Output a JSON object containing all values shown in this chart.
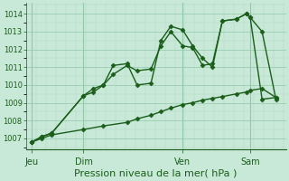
{
  "background_color": "#c8e8d8",
  "grid_major_color": "#90c8a8",
  "grid_minor_color": "#b0d8c0",
  "line_color": "#1a5e1a",
  "marker": "D",
  "marker_size": 2.5,
  "linewidth": 1.0,
  "ylabel_ticks": [
    1007,
    1008,
    1009,
    1010,
    1011,
    1012,
    1013,
    1014
  ],
  "ylim": [
    1006.4,
    1014.6
  ],
  "xlim": [
    -0.1,
    13.0
  ],
  "xlabel": "Pression niveau de la mer( hPa )",
  "xtick_labels": [
    "Jeu",
    "Dim",
    "Ven",
    "Sam"
  ],
  "xtick_positions": [
    0.2,
    2.8,
    7.8,
    11.2
  ],
  "vline_positions": [
    0.2,
    2.8,
    7.8,
    11.2
  ],
  "series": [
    {
      "x": [
        0.2,
        0.7,
        1.2,
        2.8,
        3.3,
        3.8,
        4.3,
        5.0,
        5.5,
        6.2,
        6.7,
        7.2,
        7.8,
        8.3,
        8.8,
        9.3,
        9.8,
        10.5,
        11.0,
        11.2,
        11.8,
        12.5
      ],
      "y": [
        1006.8,
        1007.1,
        1007.3,
        1009.4,
        1009.8,
        1010.0,
        1011.1,
        1011.2,
        1010.0,
        1010.1,
        1012.5,
        1013.3,
        1013.1,
        1012.2,
        1011.5,
        1011.0,
        1013.6,
        1013.7,
        1014.0,
        1013.8,
        1013.0,
        1009.2
      ]
    },
    {
      "x": [
        0.2,
        0.7,
        1.2,
        2.8,
        3.3,
        3.8,
        4.3,
        5.0,
        5.5,
        6.2,
        6.7,
        7.2,
        7.8,
        8.3,
        8.8,
        9.3,
        9.8,
        10.5,
        11.0,
        11.2,
        11.8,
        12.5
      ],
      "y": [
        1006.8,
        1007.1,
        1007.3,
        1009.4,
        1009.6,
        1010.0,
        1010.6,
        1011.1,
        1010.8,
        1010.9,
        1012.2,
        1013.0,
        1012.2,
        1012.1,
        1011.1,
        1011.2,
        1013.6,
        1013.7,
        1014.0,
        1013.8,
        1009.2,
        1009.3
      ]
    },
    {
      "x": [
        0.2,
        0.7,
        1.2,
        2.8,
        3.8,
        5.0,
        5.5,
        6.2,
        6.7,
        7.2,
        7.8,
        8.3,
        8.8,
        9.3,
        9.8,
        10.5,
        11.0,
        11.2,
        11.8,
        12.5
      ],
      "y": [
        1006.8,
        1007.0,
        1007.2,
        1007.5,
        1007.7,
        1007.9,
        1008.1,
        1008.3,
        1008.5,
        1008.7,
        1008.9,
        1009.0,
        1009.15,
        1009.25,
        1009.35,
        1009.5,
        1009.6,
        1009.7,
        1009.8,
        1009.3
      ]
    }
  ],
  "figsize": [
    3.2,
    2.0
  ],
  "dpi": 100,
  "tick_fontsize": 6,
  "xlabel_fontsize": 8
}
